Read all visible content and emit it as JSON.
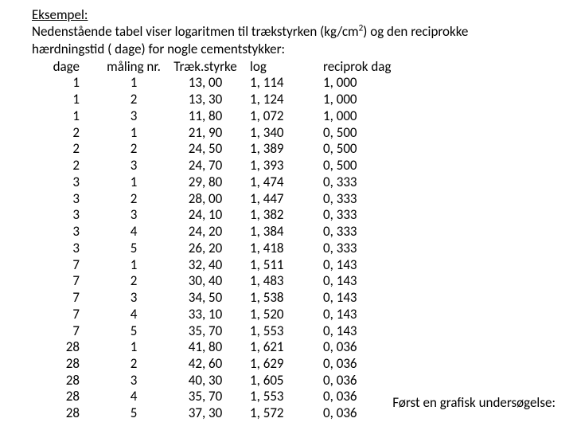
{
  "text": {
    "title": "Eksempel:",
    "intro_part1": "Nedenstående tabel viser logaritmen til trækstyrken (kg/cm",
    "intro_sup": "2",
    "intro_part2": ") og den reciprokke",
    "intro_line2": "hærdningstid ( dage) for nogle cementstykker:",
    "footnote": "Først en grafisk undersøgelse:"
  },
  "table": {
    "headers": {
      "c1": "dage",
      "c2": "måling nr.",
      "c3": "Træk.styrke",
      "c4": "log",
      "c5": "reciprok dag"
    },
    "rows": [
      {
        "c1": "1",
        "c2": "1",
        "c3": "13, 00",
        "c4": "1, 114",
        "c5": "1, 000"
      },
      {
        "c1": "1",
        "c2": "2",
        "c3": "13, 30",
        "c4": "1, 124",
        "c5": "1, 000"
      },
      {
        "c1": "1",
        "c2": "3",
        "c3": "11, 80",
        "c4": "1, 072",
        "c5": "1, 000"
      },
      {
        "c1": "2",
        "c2": "1",
        "c3": "21, 90",
        "c4": "1, 340",
        "c5": "0, 500"
      },
      {
        "c1": "2",
        "c2": "2",
        "c3": "24, 50",
        "c4": "1, 389",
        "c5": "0, 500"
      },
      {
        "c1": "2",
        "c2": "3",
        "c3": "24, 70",
        "c4": "1, 393",
        "c5": "0, 500"
      },
      {
        "c1": "3",
        "c2": "1",
        "c3": "29, 80",
        "c4": "1, 474",
        "c5": "0, 333"
      },
      {
        "c1": "3",
        "c2": "2",
        "c3": "28, 00",
        "c4": "1, 447",
        "c5": "0, 333"
      },
      {
        "c1": "3",
        "c2": "3",
        "c3": "24, 10",
        "c4": "1, 382",
        "c5": "0, 333"
      },
      {
        "c1": "3",
        "c2": "4",
        "c3": "24, 20",
        "c4": "1, 384",
        "c5": "0, 333"
      },
      {
        "c1": "3",
        "c2": "5",
        "c3": "26, 20",
        "c4": "1, 418",
        "c5": "0, 333"
      },
      {
        "c1": "7",
        "c2": "1",
        "c3": "32, 40",
        "c4": "1, 511",
        "c5": "0, 143"
      },
      {
        "c1": "7",
        "c2": "2",
        "c3": "30, 40",
        "c4": "1, 483",
        "c5": "0, 143"
      },
      {
        "c1": "7",
        "c2": "3",
        "c3": "34, 50",
        "c4": "1, 538",
        "c5": "0, 143"
      },
      {
        "c1": "7",
        "c2": "4",
        "c3": "33, 10",
        "c4": "1, 520",
        "c5": "0, 143"
      },
      {
        "c1": "7",
        "c2": "5",
        "c3": "35, 70",
        "c4": "1, 553",
        "c5": "0, 143"
      },
      {
        "c1": "28",
        "c2": "1",
        "c3": "41, 80",
        "c4": "1, 621",
        "c5": "0, 036"
      },
      {
        "c1": "28",
        "c2": "2",
        "c3": "42, 60",
        "c4": "1, 629",
        "c5": "0, 036"
      },
      {
        "c1": "28",
        "c2": "3",
        "c3": "40, 30",
        "c4": "1, 605",
        "c5": "0, 036"
      },
      {
        "c1": "28",
        "c2": "4",
        "c3": "35, 70",
        "c4": "1, 553",
        "c5": "0, 036"
      },
      {
        "c1": "28",
        "c2": "5",
        "c3": "37, 30",
        "c4": "1, 572",
        "c5": "0, 036"
      }
    ]
  }
}
